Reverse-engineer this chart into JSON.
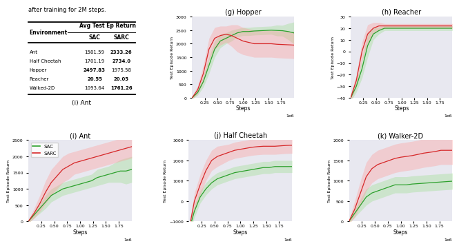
{
  "title_text": "after training for 2M steps.",
  "table": {
    "environments": [
      "Ant",
      "Half Cheetah",
      "Hopper",
      "Reacher",
      "Walked-2D"
    ],
    "sac_values": [
      1581.59,
      1701.19,
      2497.83,
      20.55,
      1093.64
    ],
    "sarc_values": [
      2333.26,
      2734.0,
      1975.58,
      20.05,
      1761.26
    ],
    "sac_bold": [
      false,
      false,
      true,
      true,
      false
    ],
    "sarc_bold": [
      true,
      true,
      false,
      true,
      true
    ]
  },
  "plot_titles": [
    "(g) Hopper",
    "(h) Reacher",
    "(i) Ant",
    "(j) Half Cheetah",
    "(k) Walker-2D"
  ],
  "sac_color": "#2ca02c",
  "sarc_color": "#d62728",
  "sac_fill_color": "#98df8a",
  "sarc_fill_color": "#ff9896",
  "bg_color": "#e8e8f0",
  "legend_labels": [
    "SAC",
    "SARC"
  ],
  "x_label": "Steps",
  "y_label": "Test Episode Return",
  "hopper": {
    "sac_mean": [
      0,
      200,
      600,
      1200,
      1800,
      2100,
      2200,
      2300,
      2400,
      2450,
      2450,
      2470,
      2480,
      2490,
      2500,
      2490,
      2480,
      2450,
      2400
    ],
    "sac_std": [
      50,
      100,
      200,
      300,
      300,
      250,
      200,
      200,
      150,
      150,
      150,
      150,
      150,
      150,
      150,
      200,
      200,
      300,
      400
    ],
    "sarc_mean": [
      0,
      300,
      900,
      1800,
      2200,
      2300,
      2350,
      2300,
      2200,
      2100,
      2050,
      2000,
      2000,
      2000,
      2000,
      1980,
      1970,
      1960,
      1950
    ],
    "sarc_std": [
      50,
      150,
      300,
      400,
      400,
      350,
      300,
      400,
      500,
      500,
      500,
      500,
      500,
      500,
      500,
      500,
      500,
      500,
      500
    ],
    "ylim": [
      0,
      3000
    ],
    "yticks": [
      0,
      500,
      1000,
      1500,
      2000,
      2500,
      3000
    ]
  },
  "reacher": {
    "sac_mean": [
      -40,
      -30,
      -15,
      5,
      15,
      18,
      20,
      20,
      20,
      20,
      20,
      20,
      20,
      20,
      20,
      20,
      20,
      20,
      20
    ],
    "sac_std": [
      3,
      5,
      8,
      10,
      5,
      3,
      2,
      2,
      2,
      2,
      2,
      2,
      2,
      2,
      2,
      2,
      2,
      2,
      2
    ],
    "sarc_mean": [
      -40,
      -25,
      0,
      15,
      20,
      22,
      22,
      22,
      22,
      22,
      22,
      22,
      22,
      22,
      22,
      22,
      22,
      22,
      22
    ],
    "sarc_std": [
      3,
      5,
      8,
      8,
      5,
      3,
      2,
      2,
      2,
      2,
      2,
      2,
      2,
      2,
      2,
      2,
      2,
      2,
      2
    ],
    "ylim": [
      -40,
      30
    ],
    "yticks": [
      -40,
      -30,
      -20,
      -10,
      0,
      10,
      20,
      30
    ]
  },
  "ant": {
    "sac_mean": [
      0,
      200,
      400,
      600,
      800,
      900,
      1000,
      1050,
      1100,
      1150,
      1200,
      1250,
      1350,
      1400,
      1450,
      1500,
      1550,
      1550,
      1600
    ],
    "sac_std": [
      50,
      100,
      150,
      200,
      200,
      200,
      200,
      200,
      200,
      200,
      200,
      200,
      250,
      250,
      250,
      300,
      350,
      400,
      400
    ],
    "sarc_mean": [
      0,
      250,
      550,
      900,
      1200,
      1400,
      1600,
      1700,
      1800,
      1850,
      1900,
      1950,
      2000,
      2050,
      2100,
      2150,
      2200,
      2250,
      2300
    ],
    "sarc_std": [
      50,
      150,
      250,
      350,
      400,
      400,
      400,
      400,
      350,
      350,
      350,
      350,
      350,
      350,
      350,
      350,
      350,
      350,
      350
    ],
    "ylim": [
      0,
      2500
    ],
    "yticks": [
      0,
      500,
      1000,
      1500,
      2000,
      2500
    ]
  },
  "half_cheetah": {
    "sac_mean": [
      -1500,
      -500,
      200,
      600,
      900,
      1100,
      1200,
      1300,
      1400,
      1450,
      1500,
      1550,
      1600,
      1650,
      1650,
      1700,
      1700,
      1700,
      1700
    ],
    "sac_std": [
      200,
      300,
      300,
      300,
      300,
      300,
      300,
      300,
      300,
      300,
      300,
      300,
      300,
      300,
      300,
      300,
      300,
      300,
      300
    ],
    "sarc_mean": [
      -1500,
      0,
      800,
      1500,
      2000,
      2200,
      2300,
      2400,
      2500,
      2550,
      2600,
      2650,
      2680,
      2700,
      2700,
      2700,
      2720,
      2740,
      2750
    ],
    "sarc_std": [
      200,
      400,
      500,
      500,
      500,
      500,
      450,
      400,
      400,
      400,
      400,
      400,
      400,
      400,
      400,
      400,
      400,
      400,
      400
    ],
    "ylim": [
      -1000,
      3000
    ],
    "yticks": [
      -1000,
      0,
      1000,
      2000,
      3000
    ]
  },
  "walker2d": {
    "sac_mean": [
      0,
      200,
      400,
      600,
      700,
      750,
      800,
      850,
      900,
      900,
      900,
      920,
      930,
      940,
      950,
      960,
      970,
      980,
      990
    ],
    "sac_std": [
      50,
      100,
      150,
      200,
      200,
      200,
      200,
      200,
      200,
      200,
      200,
      200,
      200,
      200,
      200,
      200,
      200,
      200,
      200
    ],
    "sarc_mean": [
      0,
      300,
      700,
      1100,
      1300,
      1400,
      1450,
      1500,
      1550,
      1580,
      1600,
      1620,
      1650,
      1680,
      1700,
      1720,
      1750,
      1750,
      1750
    ],
    "sarc_std": [
      50,
      200,
      300,
      350,
      350,
      350,
      350,
      350,
      350,
      350,
      350,
      350,
      350,
      350,
      350,
      350,
      350,
      350,
      350
    ],
    "ylim": [
      0,
      2000
    ],
    "yticks": [
      0,
      500,
      1000,
      1500,
      2000
    ]
  }
}
